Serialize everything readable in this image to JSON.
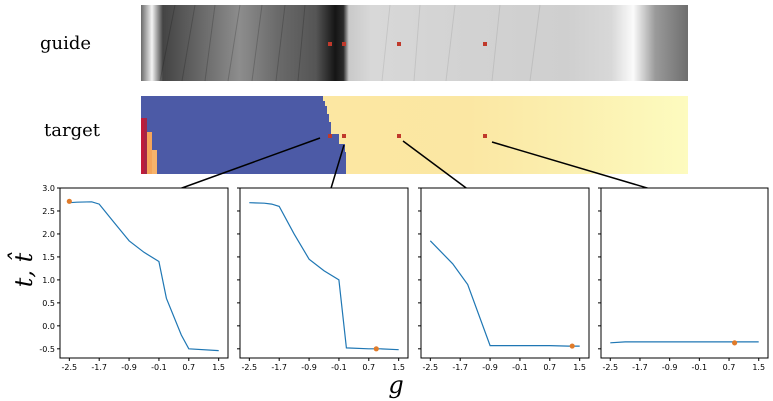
{
  "labels": {
    "guide": "guide",
    "target": "target",
    "y_axis": "t, t̂",
    "x_axis": "g"
  },
  "colors": {
    "target_left": "#4c5aa6",
    "target_right": "#fde9a3",
    "marker": "#c0392b",
    "line": "#1f77b4",
    "point": "#e07b2a"
  },
  "chart_data": [
    {
      "type": "line",
      "title": "",
      "xlabel": "g",
      "ylabel": "t, t̂",
      "xlim": [
        -2.75,
        1.75
      ],
      "ylim": [
        -0.7,
        3.0
      ],
      "xticks": [
        -2.5,
        -1.7,
        -0.9,
        -0.1,
        0.7,
        1.5
      ],
      "xtick_labels": [
        "-2.5",
        "-1.7",
        "-0.9",
        "-0.1",
        "0.7",
        "1.5"
      ],
      "yticks": [
        -0.5,
        0.0,
        0.5,
        1.0,
        1.5,
        2.0,
        2.5,
        3.0
      ],
      "ytick_labels": [
        "-0.5",
        "0.0",
        "0.5",
        "1.0",
        "1.5",
        "2.0",
        "2.5",
        "3.0"
      ],
      "x": [
        -2.5,
        -2.3,
        -1.9,
        -1.7,
        -1.3,
        -0.9,
        -0.5,
        -0.1,
        0.1,
        0.5,
        0.7,
        1.5
      ],
      "y": [
        2.68,
        2.69,
        2.7,
        2.65,
        2.25,
        1.85,
        1.6,
        1.4,
        0.6,
        -0.2,
        -0.5,
        -0.54
      ],
      "points": [
        {
          "x": -2.5,
          "y": 2.71
        }
      ]
    },
    {
      "type": "line",
      "title": "",
      "xlabel": "g",
      "ylabel": "",
      "xlim": [
        -2.75,
        1.75
      ],
      "ylim": [
        -0.7,
        3.0
      ],
      "xticks": [
        -2.5,
        -1.7,
        -0.9,
        -0.1,
        0.7,
        1.5
      ],
      "xtick_labels": [
        "-2.5",
        "-1.7",
        "-0.9",
        "-0.1",
        "0.7",
        "1.5"
      ],
      "x": [
        -2.5,
        -2.1,
        -1.9,
        -1.7,
        -1.3,
        -0.9,
        -0.5,
        -0.1,
        0.1,
        0.7,
        1.0,
        1.5
      ],
      "y": [
        2.68,
        2.67,
        2.65,
        2.6,
        2.0,
        1.45,
        1.2,
        1.0,
        -0.48,
        -0.5,
        -0.5,
        -0.52
      ],
      "points": [
        {
          "x": 0.9,
          "y": -0.5
        }
      ]
    },
    {
      "type": "line",
      "title": "",
      "xlabel": "g",
      "ylabel": "",
      "xlim": [
        -2.75,
        1.75
      ],
      "ylim": [
        -0.7,
        3.0
      ],
      "xticks": [
        -2.5,
        -1.7,
        -0.9,
        -0.1,
        0.7,
        1.5
      ],
      "xtick_labels": [
        "-2.5",
        "-1.7",
        "-0.9",
        "-0.1",
        "0.7",
        "1.5"
      ],
      "x": [
        -2.5,
        -1.9,
        -1.5,
        -0.9,
        -0.1,
        0.7,
        1.2,
        1.5
      ],
      "y": [
        1.85,
        1.35,
        0.9,
        -0.43,
        -0.43,
        -0.43,
        -0.44,
        -0.44
      ],
      "points": [
        {
          "x": 1.3,
          "y": -0.44
        }
      ]
    },
    {
      "type": "line",
      "title": "",
      "xlabel": "g",
      "ylabel": "",
      "xlim": [
        -2.75,
        1.75
      ],
      "ylim": [
        -0.7,
        3.0
      ],
      "xticks": [
        -2.5,
        -1.7,
        -0.9,
        -0.1,
        0.7,
        1.5
      ],
      "xtick_labels": [
        "-2.5",
        "-1.7",
        "-0.9",
        "-0.1",
        "0.7",
        "1.5"
      ],
      "x": [
        -2.5,
        -2.1,
        -1.7,
        -0.9,
        -0.1,
        0.7,
        1.5
      ],
      "y": [
        -0.37,
        -0.35,
        -0.35,
        -0.35,
        -0.35,
        -0.35,
        -0.35
      ],
      "points": [
        {
          "x": 0.85,
          "y": -0.37
        }
      ]
    }
  ]
}
